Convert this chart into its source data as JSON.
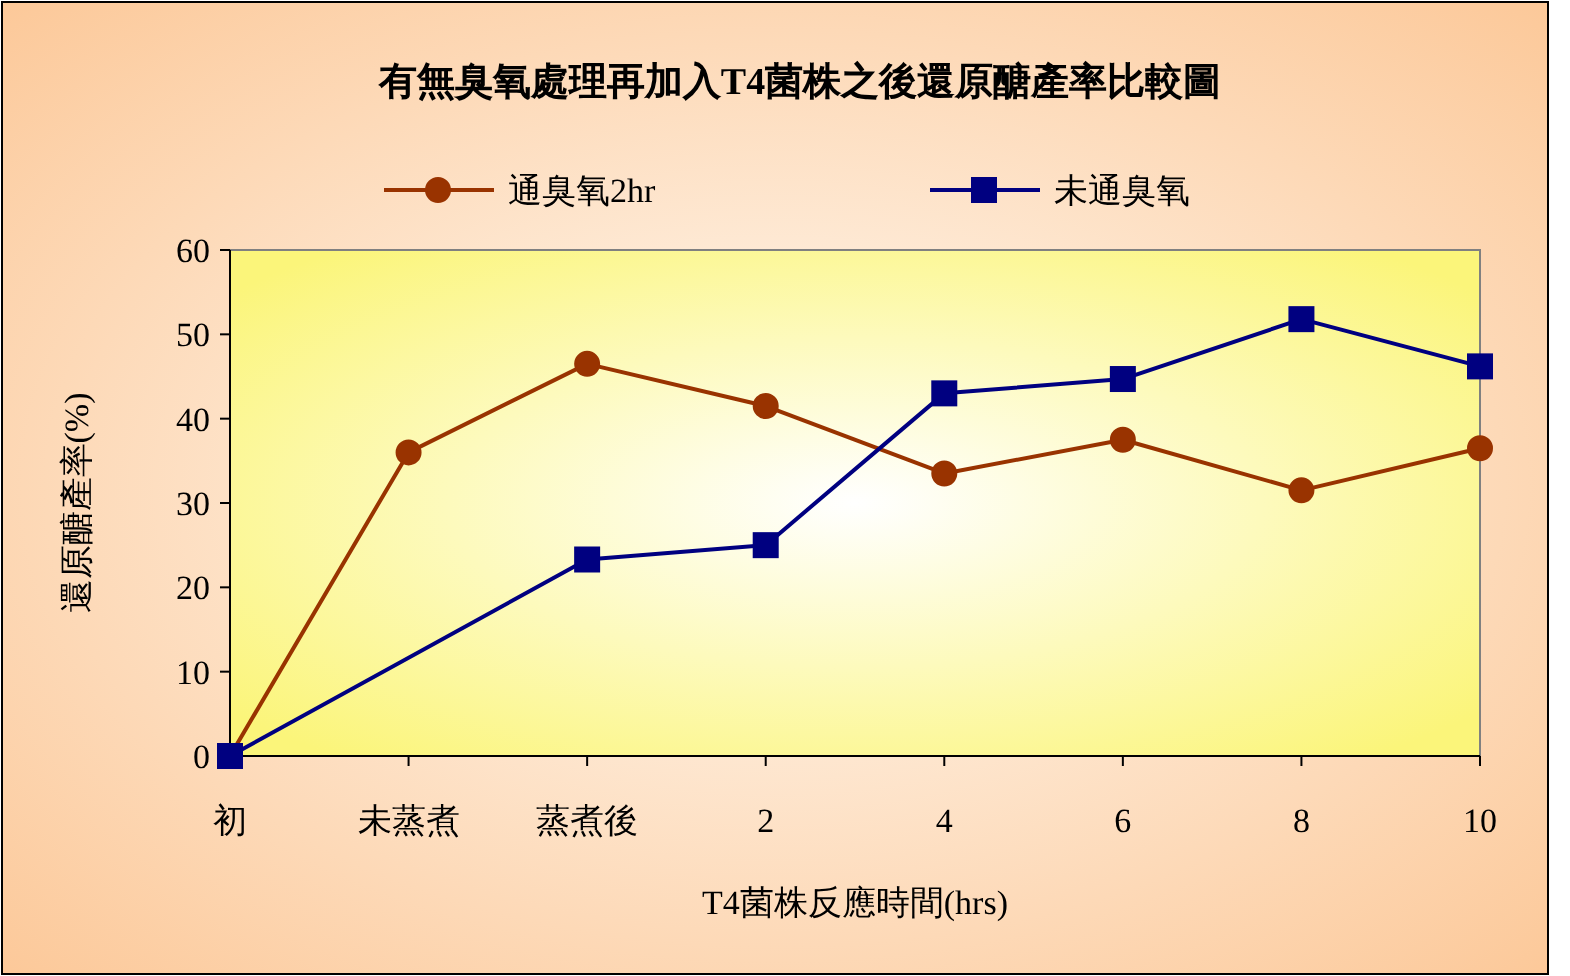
{
  "chart_data": {
    "type": "line",
    "title": "有無臭氧處理再加入T4菌株之後還原醣產率比較圖",
    "xlabel": "T4菌株反應時間(hrs)",
    "ylabel": "還原醣產率(%)",
    "categories": [
      "初",
      "未蒸煮",
      "蒸煮後",
      "2",
      "4",
      "6",
      "8",
      "10"
    ],
    "series": [
      {
        "name": "通臭氧2hr",
        "color": "#993300",
        "marker": "circle",
        "values": [
          0,
          36,
          46.5,
          41.5,
          33.5,
          37.5,
          31.5,
          36.5
        ]
      },
      {
        "name": "未通臭氧",
        "color": "#000080",
        "marker": "square",
        "values": [
          0,
          null,
          23.3,
          25,
          43,
          44.7,
          51.8,
          46.2
        ]
      }
    ],
    "ylim": [
      0,
      60
    ],
    "yticks": [
      0,
      10,
      20,
      30,
      40,
      50,
      60
    ],
    "grid": false,
    "legend": "top",
    "line_style": "solid"
  }
}
